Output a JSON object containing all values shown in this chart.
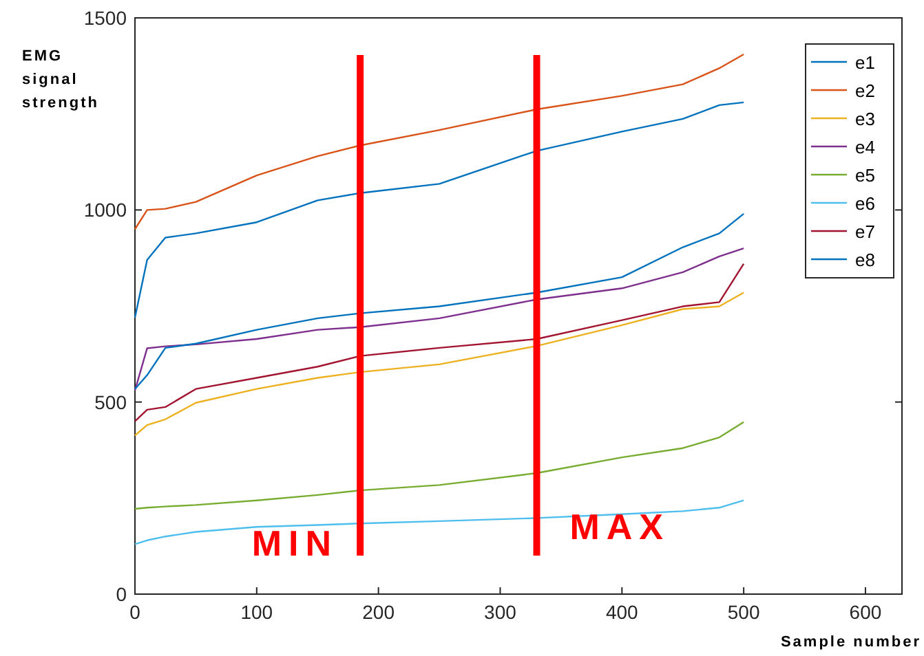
{
  "chart_data": {
    "type": "line",
    "xlabel": "Sample number",
    "ylabel": "EMG\nsignal\nstrength",
    "x": [
      0,
      10,
      25,
      50,
      100,
      150,
      185,
      250,
      330,
      400,
      450,
      480,
      500
    ],
    "xlim": [
      0,
      630
    ],
    "ylim": [
      0,
      1500
    ],
    "xticks": [
      0,
      100,
      200,
      300,
      400,
      500,
      600
    ],
    "yticks": [
      0,
      500,
      1000,
      1500
    ],
    "grid": false,
    "legend": "top right",
    "series": [
      {
        "name": "e1",
        "color": "#0072bd",
        "values": [
          720,
          870,
          928,
          939,
          968,
          1025,
          1044,
          1068,
          1154,
          1204,
          1237,
          1273,
          1280
        ]
      },
      {
        "name": "e2",
        "color": "#d95319",
        "values": [
          950,
          1000,
          1003,
          1021,
          1090,
          1140,
          1168,
          1208,
          1262,
          1297,
          1327,
          1369,
          1405
        ]
      },
      {
        "name": "e3",
        "color": "#edb120",
        "values": [
          413,
          440,
          455,
          498,
          534,
          563,
          578,
          598,
          646,
          700,
          742,
          749,
          785
        ]
      },
      {
        "name": "e4",
        "color": "#7e2f8e",
        "values": [
          530,
          640,
          645,
          650,
          664,
          688,
          695,
          718,
          767,
          796,
          838,
          879,
          900
        ]
      },
      {
        "name": "e5",
        "color": "#77ac30",
        "values": [
          222,
          225,
          228,
          232,
          244,
          258,
          270,
          284,
          315,
          356,
          380,
          408,
          448
        ]
      },
      {
        "name": "e6",
        "color": "#4dbeee",
        "values": [
          130,
          140,
          150,
          162,
          175,
          180,
          184,
          190,
          198,
          208,
          216,
          225,
          244
        ]
      },
      {
        "name": "e7",
        "color": "#a2142f",
        "values": [
          450,
          480,
          487,
          534,
          563,
          592,
          620,
          641,
          664,
          713,
          749,
          760,
          860
        ]
      },
      {
        "name": "e8",
        "color": "#0072bd",
        "values": [
          534,
          570,
          641,
          652,
          688,
          718,
          731,
          749,
          785,
          825,
          903,
          939,
          990
        ]
      }
    ],
    "ref_lines": [
      {
        "axis": "x",
        "value": 185,
        "label": "MIN",
        "color": "#ff0000"
      },
      {
        "axis": "x",
        "value": 330,
        "label": "MAX",
        "color": "#ff0000"
      }
    ]
  }
}
